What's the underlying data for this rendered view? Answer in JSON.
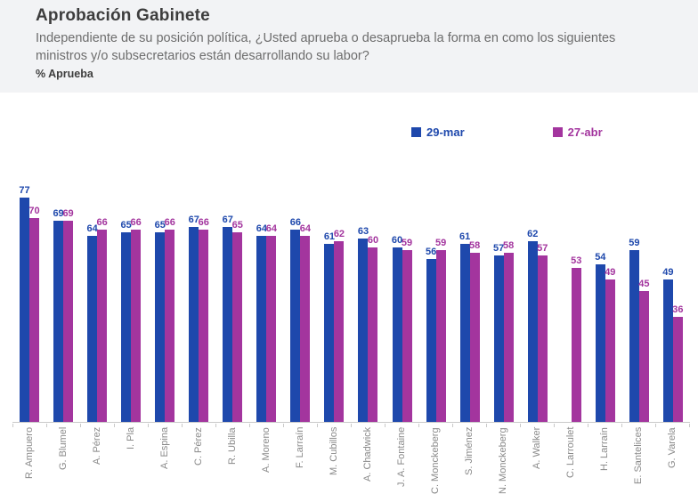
{
  "header": {
    "title": "Aprobación Gabinete",
    "subtitle": "Independiente de su posición política, ¿Usted aprueba o desaprueba la forma en como los siguientes ministros y/o subsecretarios están desarrollando su labor?",
    "metric_label": "% Aprueba"
  },
  "legend": [
    {
      "label": "29-mar",
      "color": "#1e48ac"
    },
    {
      "label": "27-abr",
      "color": "#a3359e"
    }
  ],
  "chart_data": {
    "type": "bar",
    "title": "Aprobación Gabinete",
    "ylabel": "% Aprueba",
    "ylim": [
      0,
      80
    ],
    "grid": false,
    "legend_position": "top",
    "value_labels": "above-bars",
    "categories": [
      "R. Ampuero",
      "G. Blumel",
      "A. Pérez",
      "I. Pla",
      "A. Espina",
      "C. Pérez",
      "R. Ubilla",
      "A. Moreno",
      "F. Larraín",
      "M. Cubillos",
      "A. Chadwick",
      "J. A. Fontaine",
      "C. Monckeberg",
      "S. Jiménez",
      "N. Monckeberg",
      "A. Walker",
      "C. Larroulet",
      "H. Larraín",
      "E. Santelices",
      "G. Varela"
    ],
    "series": [
      {
        "name": "29-mar",
        "color": "#1e48ac",
        "values": [
          77,
          69,
          64,
          65,
          65,
          67,
          67,
          64,
          66,
          61,
          63,
          60,
          56,
          61,
          57,
          62,
          null,
          54,
          59,
          49
        ]
      },
      {
        "name": "27-abr",
        "color": "#a3359e",
        "values": [
          70,
          69,
          66,
          66,
          66,
          66,
          65,
          64,
          64,
          62,
          60,
          59,
          59,
          58,
          58,
          57,
          53,
          49,
          45,
          36
        ]
      }
    ]
  }
}
